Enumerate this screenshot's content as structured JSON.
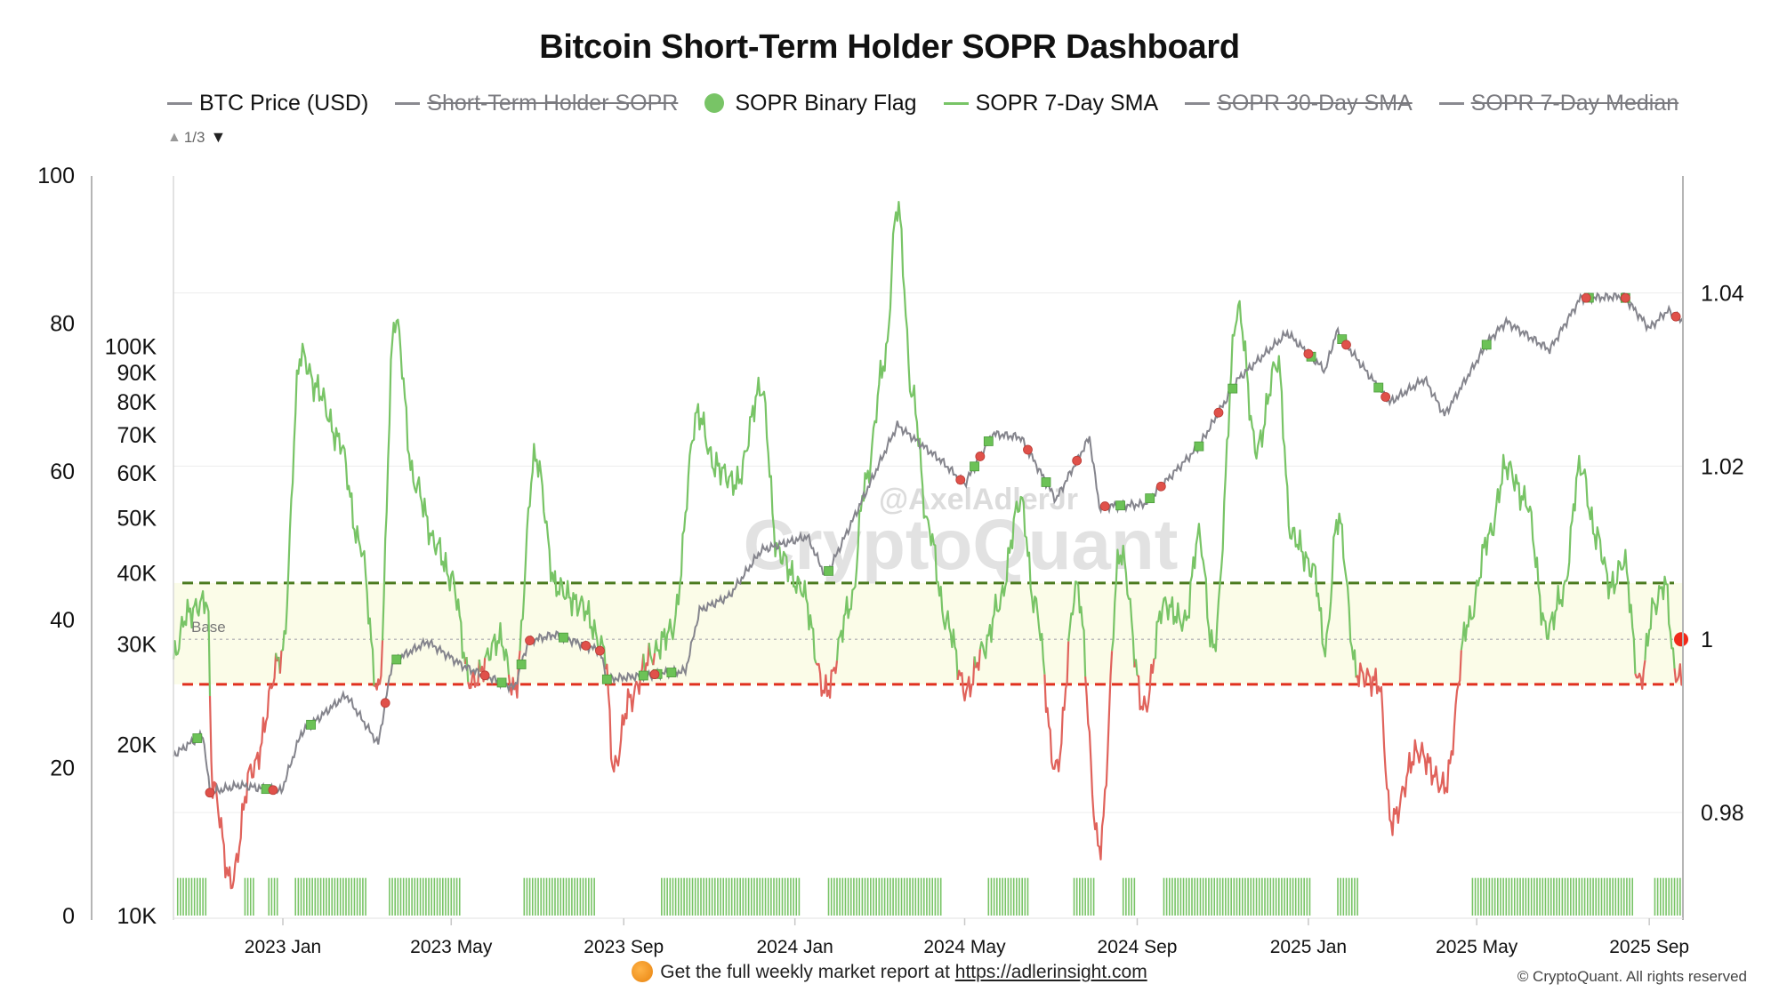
{
  "title": "Bitcoin Short-Term Holder SOPR Dashboard",
  "legend": [
    {
      "label": "BTC Price (USD)",
      "color": "#8a8a90",
      "swatch": "line",
      "hidden": false
    },
    {
      "label": "Short-Term Holder SOPR",
      "color": "#8a8a90",
      "swatch": "line",
      "hidden": true
    },
    {
      "label": "SOPR Binary Flag",
      "color": "#78c466",
      "swatch": "dot",
      "hidden": false
    },
    {
      "label": "SOPR 7-Day SMA",
      "color": "#78c466",
      "swatch": "line",
      "hidden": false
    },
    {
      "label": "SOPR 30-Day SMA",
      "color": "#8a8a90",
      "swatch": "line",
      "hidden": true
    },
    {
      "label": "SOPR 7-Day Median",
      "color": "#8a8a90",
      "swatch": "line",
      "hidden": true
    }
  ],
  "pager": {
    "text": "1/3",
    "up": "▲",
    "down": "▼"
  },
  "watermark": {
    "handle": "@AxelAdlerJr",
    "brand": "CryptoQuant"
  },
  "footer": {
    "text": "Get the full weekly market report at",
    "link": "https://adlerinsight.com"
  },
  "copyright": "© CryptoQuant. All rights reserved",
  "chart_data": {
    "type": "line",
    "x_ticks": [
      "2023 Jan",
      "2023 May",
      "2023 Sep",
      "2024 Jan",
      "2024 May",
      "2024 Sep",
      "2025 Jan",
      "2025 May",
      "2025 Sep"
    ],
    "x_tick_dates": [
      "2023-01-01",
      "2023-05-01",
      "2023-09-01",
      "2024-01-01",
      "2024-05-01",
      "2024-09-01",
      "2025-01-01",
      "2025-05-01",
      "2025-09-01"
    ],
    "x_range": [
      "2022-10-15",
      "2025-09-25"
    ],
    "left_axis_binary": {
      "ticks": [
        "0",
        "20",
        "40",
        "60",
        "80",
        "100"
      ],
      "range": [
        0,
        100
      ]
    },
    "left_axis_price": {
      "scale": "log",
      "ticks": [
        "10K",
        "20K",
        "30K",
        "40K",
        "50K",
        "60K",
        "70K",
        "80K",
        "90K",
        "100K"
      ],
      "tick_values": [
        10000,
        20000,
        30000,
        40000,
        50000,
        60000,
        70000,
        80000,
        90000,
        100000
      ],
      "range": [
        10000,
        200000
      ]
    },
    "right_axis_sopr": {
      "ticks": [
        "0.98",
        "1",
        "1.02",
        "1.04"
      ],
      "tick_values": [
        0.98,
        1.0,
        1.02,
        1.04
      ],
      "range": [
        0.968,
        1.0535
      ]
    },
    "reference_lines": [
      {
        "label": "Base",
        "value": 1.0,
        "style": "dotted",
        "color": "#bdbdbd"
      },
      {
        "value": 1.0065,
        "style": "dashed",
        "color": "#4a7a1e"
      },
      {
        "value": 0.9948,
        "style": "dashed",
        "color": "#e0301e"
      }
    ],
    "band": {
      "from": 0.9948,
      "to": 1.0065,
      "color": "#fbfce8"
    },
    "price_series": {
      "name": "BTC Price (USD)",
      "color": "#84848c",
      "points": [
        [
          "2022-10-15",
          19200
        ],
        [
          "2022-11-05",
          20900
        ],
        [
          "2022-11-10",
          16500
        ],
        [
          "2022-12-01",
          17000
        ],
        [
          "2022-12-31",
          16600
        ],
        [
          "2023-01-14",
          21000
        ],
        [
          "2023-02-15",
          24500
        ],
        [
          "2023-03-10",
          20100
        ],
        [
          "2023-03-20",
          28000
        ],
        [
          "2023-04-14",
          30400
        ],
        [
          "2023-05-10",
          27500
        ],
        [
          "2023-06-15",
          25200
        ],
        [
          "2023-06-25",
          30500
        ],
        [
          "2023-07-14",
          31300
        ],
        [
          "2023-08-15",
          29300
        ],
        [
          "2023-08-20",
          26100
        ],
        [
          "2023-09-15",
          26500
        ],
        [
          "2023-10-15",
          27000
        ],
        [
          "2023-10-25",
          34500
        ],
        [
          "2023-11-15",
          36500
        ],
        [
          "2023-12-08",
          44000
        ],
        [
          "2024-01-10",
          46500
        ],
        [
          "2024-01-23",
          39500
        ],
        [
          "2024-02-15",
          52000
        ],
        [
          "2024-03-14",
          73000
        ],
        [
          "2024-04-15",
          63000
        ],
        [
          "2024-05-01",
          57500
        ],
        [
          "2024-05-21",
          70500
        ],
        [
          "2024-06-10",
          69500
        ],
        [
          "2024-07-05",
          54000
        ],
        [
          "2024-07-29",
          69500
        ],
        [
          "2024-08-05",
          52500
        ],
        [
          "2024-09-06",
          53000
        ],
        [
          "2024-10-15",
          67000
        ],
        [
          "2024-11-12",
          88000
        ],
        [
          "2024-12-17",
          106000
        ],
        [
          "2025-01-13",
          91000
        ],
        [
          "2025-01-21",
          106500
        ],
        [
          "2025-02-28",
          80000
        ],
        [
          "2025-03-25",
          88000
        ],
        [
          "2025-04-08",
          76000
        ],
        [
          "2025-05-10",
          103000
        ],
        [
          "2025-05-22",
          111000
        ],
        [
          "2025-06-22",
          99000
        ],
        [
          "2025-07-14",
          122000
        ],
        [
          "2025-08-14",
          123000
        ],
        [
          "2025-09-01",
          108000
        ],
        [
          "2025-09-14",
          116000
        ],
        [
          "2025-09-25",
          111000
        ]
      ]
    },
    "sopr_7d_sma": {
      "name": "SOPR 7-Day SMA",
      "color_above": "#78c466",
      "color_below": "#e0625b",
      "points": [
        [
          "2022-10-15",
          0.998
        ],
        [
          "2022-10-25",
          1.003
        ],
        [
          "2022-11-08",
          1.0045
        ],
        [
          "2022-11-12",
          0.983
        ],
        [
          "2022-11-25",
          0.972
        ],
        [
          "2022-12-10",
          0.985
        ],
        [
          "2022-12-31",
          0.998
        ],
        [
          "2023-01-14",
          1.033
        ],
        [
          "2023-01-25",
          1.029
        ],
        [
          "2023-02-10",
          1.023
        ],
        [
          "2023-02-25",
          1.011
        ],
        [
          "2023-03-10",
          0.994
        ],
        [
          "2023-03-22",
          1.037
        ],
        [
          "2023-04-05",
          1.018
        ],
        [
          "2023-04-20",
          1.011
        ],
        [
          "2023-05-01",
          1.007
        ],
        [
          "2023-05-15",
          0.995
        ],
        [
          "2023-06-05",
          1.0
        ],
        [
          "2023-06-15",
          0.994
        ],
        [
          "2023-06-30",
          1.021
        ],
        [
          "2023-07-15",
          1.006
        ],
        [
          "2023-08-01",
          1.004
        ],
        [
          "2023-08-18",
          0.999
        ],
        [
          "2023-08-25",
          0.985
        ],
        [
          "2023-09-05",
          0.993
        ],
        [
          "2023-09-20",
          0.998
        ],
        [
          "2023-10-05",
          1.001
        ],
        [
          "2023-10-24",
          1.026
        ],
        [
          "2023-11-05",
          1.02
        ],
        [
          "2023-11-20",
          1.018
        ],
        [
          "2023-12-08",
          1.029
        ],
        [
          "2023-12-20",
          1.01
        ],
        [
          "2024-01-05",
          1.006
        ],
        [
          "2024-01-23",
          0.994
        ],
        [
          "2024-02-10",
          1.004
        ],
        [
          "2024-02-20",
          1.018
        ],
        [
          "2024-03-05",
          1.032
        ],
        [
          "2024-03-14",
          1.05
        ],
        [
          "2024-03-25",
          1.028
        ],
        [
          "2024-04-05",
          1.013
        ],
        [
          "2024-04-18",
          1.002
        ],
        [
          "2024-05-02",
          0.994
        ],
        [
          "2024-05-15",
          0.999
        ],
        [
          "2024-05-25",
          1.004
        ],
        [
          "2024-06-10",
          1.016
        ],
        [
          "2024-06-20",
          1.004
        ],
        [
          "2024-07-05",
          0.985
        ],
        [
          "2024-07-20",
          1.006
        ],
        [
          "2024-08-05",
          0.976
        ],
        [
          "2024-08-20",
          1.01
        ],
        [
          "2024-09-06",
          0.992
        ],
        [
          "2024-09-20",
          1.004
        ],
        [
          "2024-10-05",
          1.002
        ],
        [
          "2024-10-15",
          1.012
        ],
        [
          "2024-10-25",
          0.999
        ],
        [
          "2024-11-12",
          1.038
        ],
        [
          "2024-11-25",
          1.022
        ],
        [
          "2024-12-10",
          1.032
        ],
        [
          "2024-12-20",
          1.012
        ],
        [
          "2025-01-05",
          1.008
        ],
        [
          "2025-01-13",
          0.999
        ],
        [
          "2025-01-22",
          1.014
        ],
        [
          "2025-02-05",
          0.996
        ],
        [
          "2025-02-20",
          0.995
        ],
        [
          "2025-03-01",
          0.979
        ],
        [
          "2025-03-20",
          0.987
        ],
        [
          "2025-04-08",
          0.983
        ],
        [
          "2025-04-25",
          1.002
        ],
        [
          "2025-05-10",
          1.012
        ],
        [
          "2025-05-22",
          1.02
        ],
        [
          "2025-06-05",
          1.016
        ],
        [
          "2025-06-20",
          1.001
        ],
        [
          "2025-07-01",
          1.005
        ],
        [
          "2025-07-14",
          1.02
        ],
        [
          "2025-07-25",
          1.012
        ],
        [
          "2025-08-05",
          1.006
        ],
        [
          "2025-08-14",
          1.009
        ],
        [
          "2025-08-25",
          0.995
        ],
        [
          "2025-09-05",
          1.004
        ],
        [
          "2025-09-12",
          1.0065
        ],
        [
          "2025-09-20",
          0.996
        ],
        [
          "2025-09-25",
          0.9952
        ]
      ]
    },
    "price_flag_markers": {
      "up": [
        "2022-11-01",
        "2022-12-20",
        "2023-01-21",
        "2023-03-23",
        "2023-06-06",
        "2023-06-20",
        "2023-07-20",
        "2023-08-20",
        "2023-09-15",
        "2023-09-25",
        "2023-10-05",
        "2024-01-25",
        "2024-05-08",
        "2024-05-18",
        "2024-06-28",
        "2024-08-20",
        "2024-09-10",
        "2024-10-15",
        "2024-11-08",
        "2025-01-03",
        "2025-01-25",
        "2025-02-20",
        "2025-05-08",
        "2025-07-20",
        "2025-08-15"
      ],
      "down": [
        "2022-11-10",
        "2022-12-25",
        "2023-03-15",
        "2023-05-25",
        "2023-06-26",
        "2023-08-05",
        "2023-08-15",
        "2023-09-23",
        "2024-04-28",
        "2024-05-12",
        "2024-06-15",
        "2024-07-20",
        "2024-08-09",
        "2024-09-18",
        "2024-10-29",
        "2025-01-01",
        "2025-01-28",
        "2025-02-25",
        "2025-07-18",
        "2025-08-15",
        "2025-09-20"
      ]
    },
    "binary_flag_on_periods": [
      [
        "2022-10-18",
        "2022-11-08"
      ],
      [
        "2022-12-05",
        "2022-12-12"
      ],
      [
        "2022-12-22",
        "2022-12-28"
      ],
      [
        "2023-01-10",
        "2023-03-02"
      ],
      [
        "2023-03-18",
        "2023-05-08"
      ],
      [
        "2023-06-22",
        "2023-08-12"
      ],
      [
        "2023-09-28",
        "2024-01-05"
      ],
      [
        "2024-01-25",
        "2024-04-15"
      ],
      [
        "2024-05-18",
        "2024-06-15"
      ],
      [
        "2024-07-18",
        "2024-08-02"
      ],
      [
        "2024-08-22",
        "2024-08-30"
      ],
      [
        "2024-09-20",
        "2025-01-02"
      ],
      [
        "2025-01-22",
        "2025-02-05"
      ],
      [
        "2025-04-28",
        "2025-08-20"
      ],
      [
        "2025-09-05",
        "2025-09-25"
      ]
    ],
    "current_marker": {
      "date": "2025-09-25",
      "value": 1.0
    }
  }
}
